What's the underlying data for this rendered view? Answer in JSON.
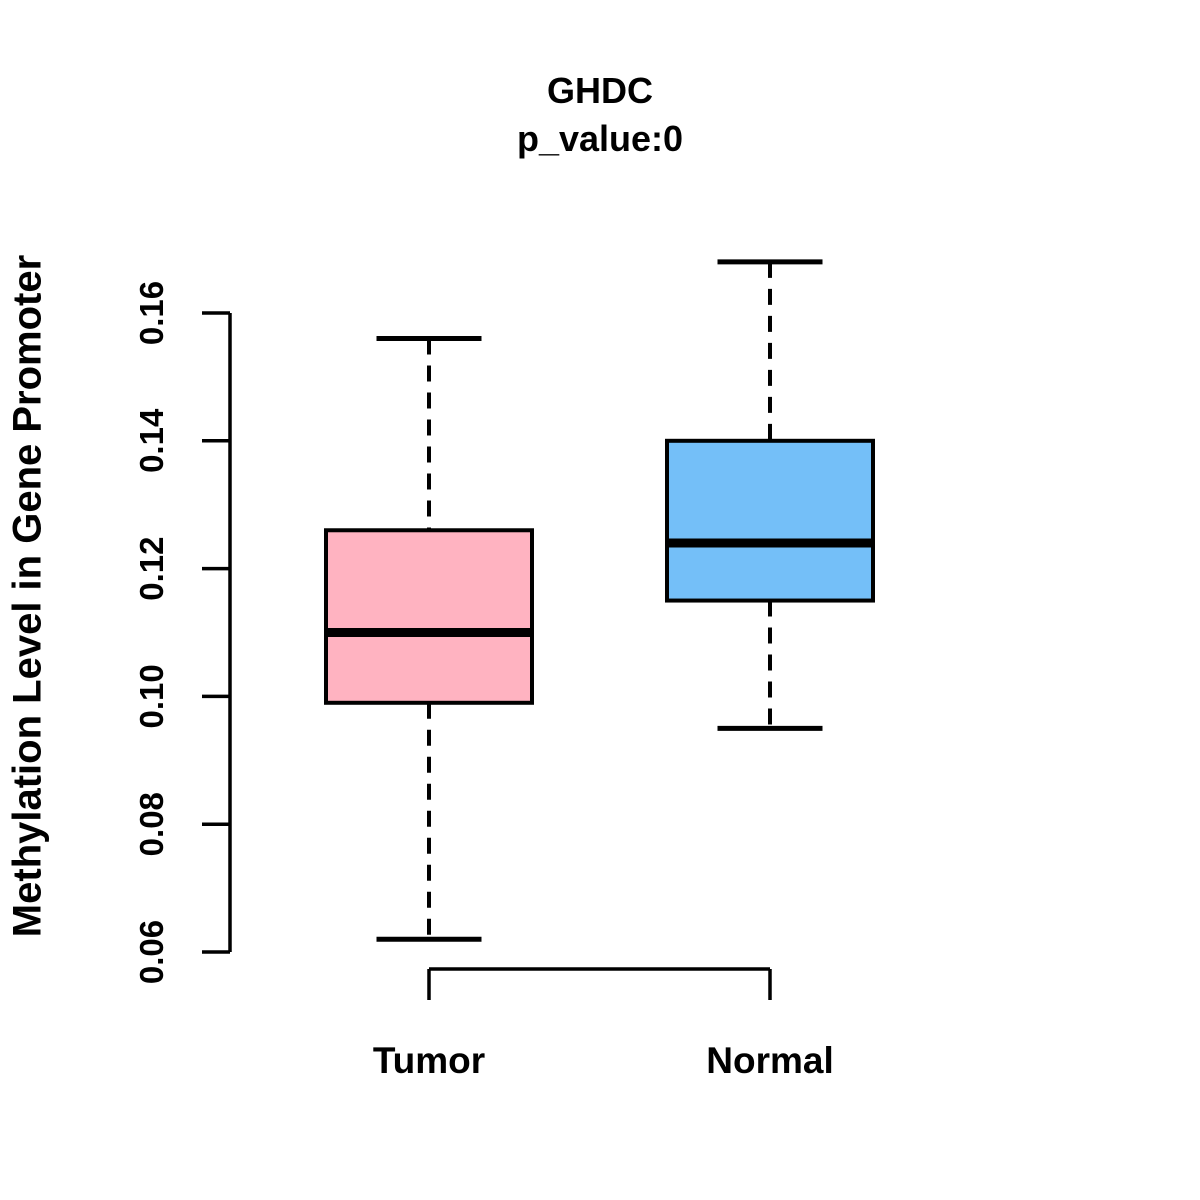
{
  "chart_data": {
    "type": "boxplot",
    "title": "GHDC",
    "subtitle": "p_value:0",
    "ylabel": "Methylation Level in Gene Promoter",
    "xlabel": "",
    "categories": [
      "Tumor",
      "Normal"
    ],
    "series": [
      {
        "name": "Tumor",
        "color": "#FFB3C1",
        "whisker_low": 0.062,
        "q1": 0.099,
        "median": 0.11,
        "q3": 0.126,
        "whisker_high": 0.156
      },
      {
        "name": "Normal",
        "color": "#74BFF8",
        "whisker_low": 0.095,
        "q1": 0.115,
        "median": 0.124,
        "q3": 0.14,
        "whisker_high": 0.168
      }
    ],
    "yticks": [
      0.06,
      0.08,
      0.1,
      0.12,
      0.14,
      0.16
    ],
    "ytick_labels": [
      "0.06",
      "0.08",
      "0.10",
      "0.12",
      "0.14",
      "0.16"
    ],
    "ylim": [
      0.06,
      0.16
    ],
    "grid": false,
    "legend": "none",
    "line_color": "#000000",
    "background": "#ffffff"
  }
}
